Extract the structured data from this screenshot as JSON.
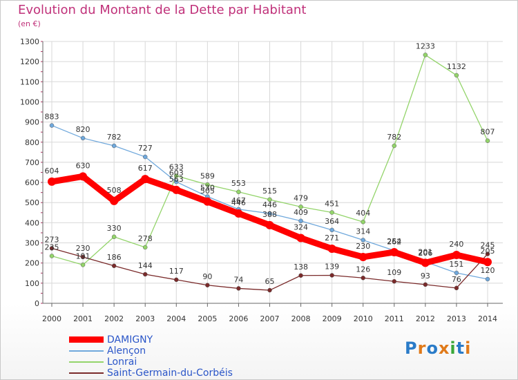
{
  "title": "Evolution du Montant de la Dette par Habitant",
  "unit": "(en €)",
  "logo": "Proxiti",
  "chart_data": {
    "type": "line",
    "title": "Evolution du Montant de la Dette par Habitant",
    "subtitle": "(en €)",
    "xlabel": "",
    "ylabel": "",
    "ylim": [
      0,
      1300
    ],
    "yticks": [
      0,
      100,
      200,
      300,
      400,
      500,
      600,
      700,
      800,
      900,
      1000,
      1100,
      1200,
      1300
    ],
    "grid": true,
    "legend": "bottom-left",
    "x": [
      "2000",
      "2001",
      "2002",
      "2003",
      "2004",
      "2005",
      "2006",
      "2007",
      "2008",
      "2009",
      "2010",
      "2011",
      "2012",
      "2013",
      "2014"
    ],
    "series": [
      {
        "name": "DAMIGNY",
        "color": "#ff0000",
        "values": [
          604,
          630,
          508,
          617,
          563,
          505,
          446,
          388,
          324,
          271,
          230,
          254,
          201,
          240,
          205
        ]
      },
      {
        "name": "Alençon",
        "color": "#6fa8dc",
        "values": [
          883,
          820,
          782,
          727,
          603,
          530,
          467,
          446,
          409,
          364,
          314,
          262,
          206,
          151,
          120
        ]
      },
      {
        "name": "Lonrai",
        "color": "#93d46a",
        "values": [
          235,
          191,
          330,
          278,
          633,
          589,
          553,
          515,
          479,
          451,
          404,
          782,
          1233,
          1132,
          807
        ]
      },
      {
        "name": "Saint-Germain-du-Corbéis",
        "color": "#7a2a2a",
        "values": [
          273,
          230,
          186,
          144,
          117,
          90,
          74,
          65,
          138,
          139,
          126,
          109,
          93,
          76,
          245
        ]
      }
    ]
  }
}
